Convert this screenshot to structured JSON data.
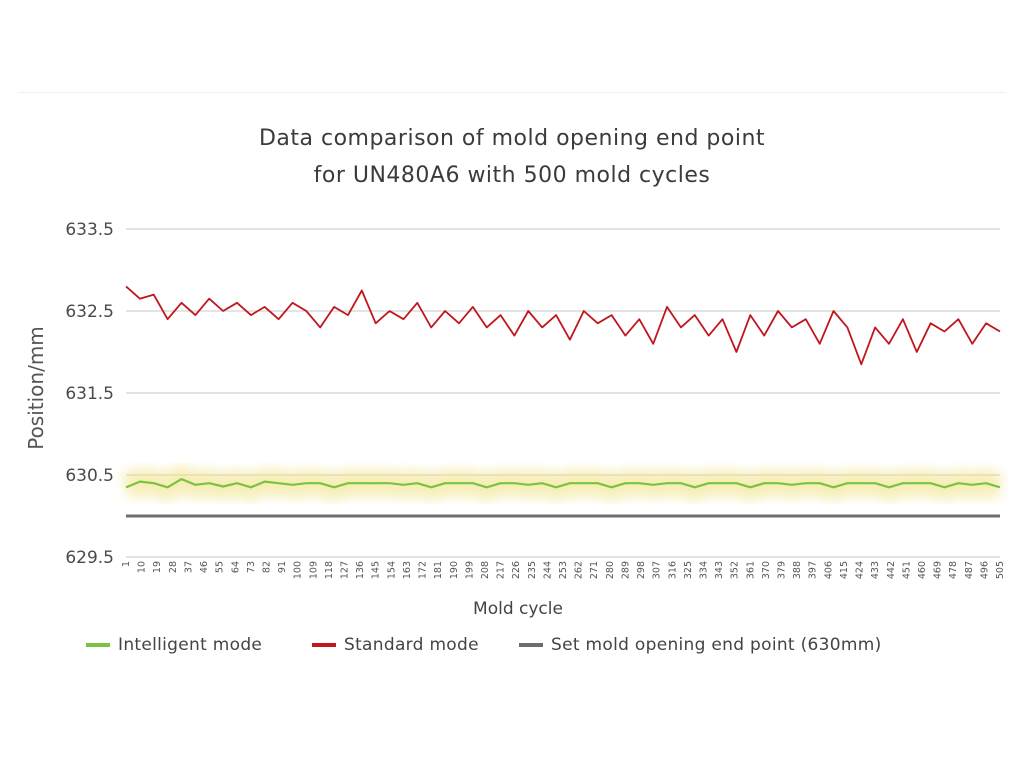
{
  "chart_data": {
    "type": "line",
    "title": "Data comparison of mold opening end point",
    "subtitle": "for UN480A6 with 500 mold cycles",
    "xlabel": "Mold cycle",
    "ylabel": "Position/mm",
    "ylim": [
      629.5,
      633.5
    ],
    "yticks": [
      "633.5",
      "632.5",
      "631.5",
      "630.5",
      "629.5"
    ],
    "xlim": [
      1,
      505
    ],
    "xticks": [
      "1",
      "10",
      "19",
      "28",
      "37",
      "46",
      "55",
      "64",
      "73",
      "82",
      "91",
      "100",
      "109",
      "118",
      "127",
      "136",
      "145",
      "154",
      "163",
      "172",
      "181",
      "190",
      "199",
      "208",
      "217",
      "226",
      "235",
      "244",
      "253",
      "262",
      "271",
      "280",
      "289",
      "298",
      "307",
      "316",
      "325",
      "334",
      "343",
      "352",
      "361",
      "370",
      "379",
      "388",
      "397",
      "406",
      "415",
      "424",
      "433",
      "442",
      "451",
      "460",
      "469",
      "478",
      "487",
      "496",
      "505"
    ],
    "grid": true,
    "legend_position": "bottom",
    "series": [
      {
        "name": "Intelligent mode",
        "color": "#7cc242",
        "sample_step": 8,
        "values": [
          630.35,
          630.42,
          630.4,
          630.35,
          630.45,
          630.38,
          630.4,
          630.36,
          630.4,
          630.35,
          630.42,
          630.4,
          630.38,
          630.4,
          630.4,
          630.35,
          630.4,
          630.4,
          630.4,
          630.4,
          630.38,
          630.4,
          630.35,
          630.4,
          630.4,
          630.4,
          630.35,
          630.4,
          630.4,
          630.38,
          630.4,
          630.35,
          630.4,
          630.4,
          630.4,
          630.35,
          630.4,
          630.4,
          630.38,
          630.4,
          630.4,
          630.35,
          630.4,
          630.4,
          630.4,
          630.35,
          630.4,
          630.4,
          630.38,
          630.4,
          630.4,
          630.35,
          630.4,
          630.4,
          630.4,
          630.35,
          630.4,
          630.4,
          630.4,
          630.35,
          630.4,
          630.38,
          630.4,
          630.35
        ]
      },
      {
        "name": "Standard mode",
        "color": "#c0161d",
        "sample_step": 8,
        "values": [
          632.8,
          632.65,
          632.7,
          632.4,
          632.6,
          632.45,
          632.65,
          632.5,
          632.6,
          632.45,
          632.55,
          632.4,
          632.6,
          632.5,
          632.3,
          632.55,
          632.45,
          632.75,
          632.35,
          632.5,
          632.4,
          632.6,
          632.3,
          632.5,
          632.35,
          632.55,
          632.3,
          632.45,
          632.2,
          632.5,
          632.3,
          632.45,
          632.15,
          632.5,
          632.35,
          632.45,
          632.2,
          632.4,
          632.1,
          632.55,
          632.3,
          632.45,
          632.2,
          632.4,
          632.0,
          632.45,
          632.2,
          632.5,
          632.3,
          632.4,
          632.1,
          632.5,
          632.3,
          631.85,
          632.3,
          632.1,
          632.4,
          632.0,
          632.35,
          632.25,
          632.4,
          632.1,
          632.35,
          632.25
        ]
      },
      {
        "name": "Set mold opening end point (630mm)",
        "color": "#6d6d6d",
        "values": [
          630.0,
          630.0
        ]
      }
    ]
  }
}
